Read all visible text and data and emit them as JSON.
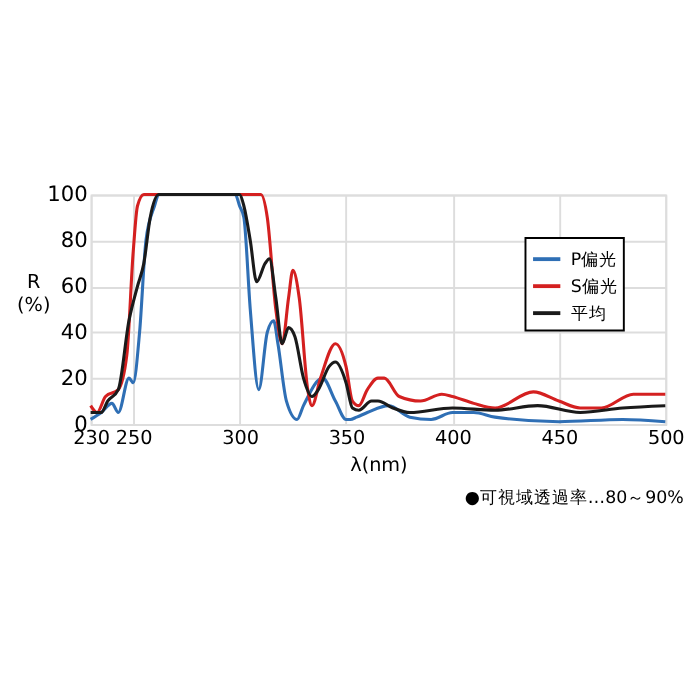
{
  "chart_data": {
    "type": "line",
    "xlabel": "λ(nm)",
    "ylabel": "R (%)",
    "xlim": [
      230,
      500
    ],
    "xticks": [
      230,
      250,
      300,
      350,
      400,
      450,
      500
    ],
    "ylim": [
      0,
      100
    ],
    "yticks": [
      0,
      20,
      40,
      60,
      80,
      100
    ],
    "grid": true,
    "legend": "top right",
    "marker": "none",
    "line_style": "solid",
    "annotations": [
      "●可視域透過率…80～90%"
    ],
    "series": [
      {
        "name": "P偏光",
        "color": "#2f6fb5",
        "x": [
          230,
          235,
          240,
          243,
          248,
          250,
          253,
          256,
          260,
          262,
          298,
          300,
          302,
          305,
          309,
          313,
          316,
          318,
          322,
          327,
          330,
          339,
          345,
          350,
          352,
          355,
          360,
          370,
          380,
          390,
          400,
          410,
          420,
          450,
          480,
          500
        ],
        "values": [
          2,
          5,
          9,
          5,
          20,
          18,
          40,
          80,
          95,
          100,
          100,
          95,
          90,
          50,
          15,
          40,
          45,
          35,
          10,
          2,
          8,
          20,
          10,
          2,
          2,
          3,
          5,
          8,
          3,
          2,
          5,
          5,
          3,
          1,
          2,
          1
        ]
      },
      {
        "name": "S偏光",
        "color": "#d42020",
        "x": [
          230,
          233,
          237,
          243,
          247,
          250,
          252,
          255,
          310,
          313,
          317,
          320,
          323,
          325,
          328,
          332,
          334,
          338,
          345,
          350,
          353,
          356,
          360,
          365,
          368,
          375,
          385,
          395,
          400,
          410,
          420,
          438,
          450,
          460,
          470,
          485,
          500
        ],
        "values": [
          8,
          5,
          12,
          15,
          30,
          75,
          95,
          100,
          100,
          90,
          50,
          35,
          55,
          67,
          55,
          15,
          8,
          20,
          35,
          25,
          10,
          8,
          15,
          20,
          20,
          12,
          10,
          13,
          12,
          9,
          7,
          14,
          10,
          7,
          7,
          13,
          13
        ]
      },
      {
        "name": "平均",
        "color": "#1a1a1a",
        "x": [
          230,
          235,
          238,
          243,
          248,
          252,
          255,
          258,
          262,
          300,
          302,
          305,
          308,
          312,
          314,
          317,
          320,
          323,
          326,
          330,
          334,
          337,
          342,
          345,
          350,
          353,
          356,
          362,
          365,
          372,
          380,
          400,
          420,
          440,
          460,
          480,
          500
        ],
        "values": [
          5,
          5,
          10,
          15,
          45,
          60,
          70,
          90,
          100,
          100,
          95,
          80,
          62,
          70,
          72,
          55,
          35,
          42,
          38,
          20,
          12,
          15,
          25,
          27,
          18,
          7,
          6,
          10,
          10,
          7,
          5,
          7,
          6,
          8,
          5,
          7,
          8
        ]
      }
    ]
  }
}
